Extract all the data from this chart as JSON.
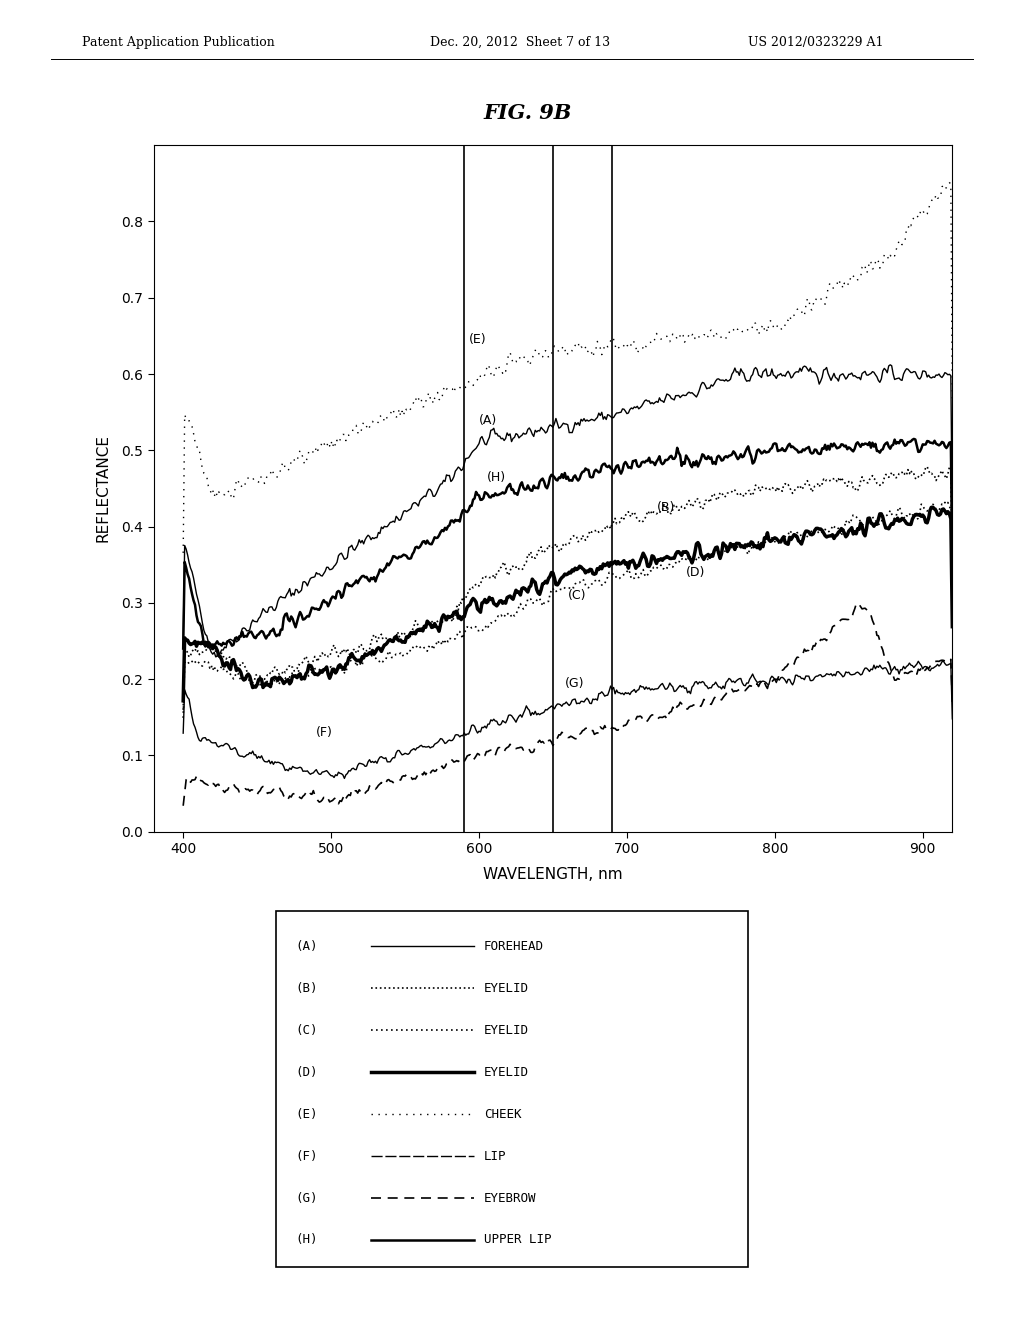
{
  "title": "FIG. 9B",
  "xlabel": "WAVELENGTH, nm",
  "ylabel": "REFLECTANCE",
  "xlim": [
    380,
    920
  ],
  "ylim": [
    0,
    0.9
  ],
  "xticks": [
    400,
    500,
    600,
    700,
    800,
    900
  ],
  "yticks": [
    0,
    0.1,
    0.2,
    0.3,
    0.4,
    0.5,
    0.6,
    0.7,
    0.8
  ],
  "vlines": [
    590,
    650,
    690
  ],
  "header_left": "Patent Application Publication",
  "header_mid": "Dec. 20, 2012  Sheet 7 of 13",
  "header_right": "US 2012/0323229 A1"
}
